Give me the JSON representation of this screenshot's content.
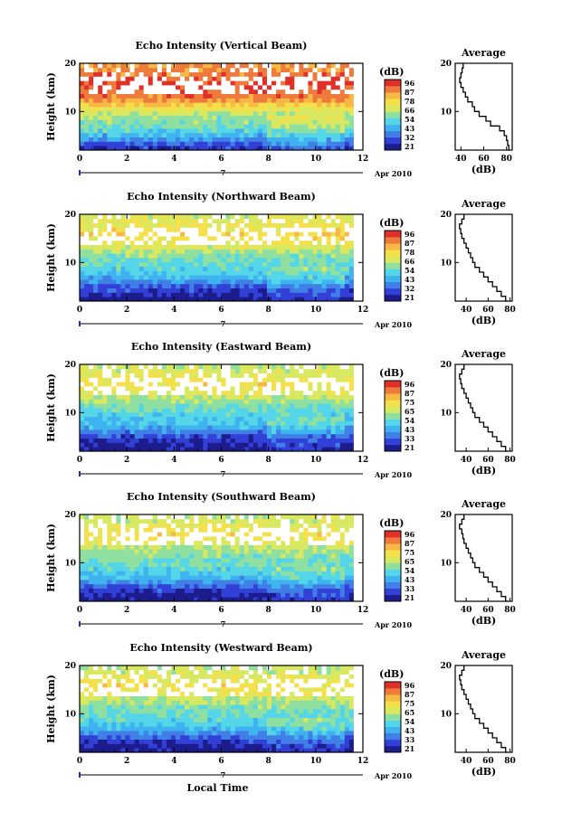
{
  "figure": {
    "x_axis_label": "Local Time",
    "date_label": "Apr 2010",
    "day_marker": "7"
  },
  "colorscale": {
    "colors": [
      "#1c1c8c",
      "#3240d8",
      "#3f7fe6",
      "#3fb3ef",
      "#55d6e8",
      "#8fe0a0",
      "#d8e860",
      "#f4e04a",
      "#f7b845",
      "#ee7a3c",
      "#e0302a"
    ],
    "missing_color": "#ffffff"
  },
  "chart_data": [
    {
      "type": "heatmap",
      "title": "Echo Intensity (Vertical Beam)",
      "xlabel": "",
      "ylabel": "Height (km)",
      "xlim": [
        0,
        12
      ],
      "ylim": [
        2,
        20
      ],
      "x_ticks": [
        "0",
        "2",
        "4",
        "6",
        "8",
        "10",
        "12"
      ],
      "y_ticks": [
        "10",
        "20"
      ],
      "colorbar": {
        "unit": "(dB)",
        "ticks": [
          "96",
          "87",
          "78",
          "66",
          "54",
          "43",
          "32",
          "21"
        ],
        "range": [
          21,
          96
        ]
      },
      "profile_levels_db": [
        30,
        34,
        40,
        46,
        52,
        56,
        58,
        60,
        64,
        70,
        76,
        82,
        86,
        88,
        90,
        90,
        88,
        86,
        84,
        82
      ],
      "profile": {
        "title": "Average",
        "xlabel": "(dB)",
        "x_ticks": [
          "40",
          "60",
          "80"
        ],
        "xlim": [
          35,
          85
        ],
        "y_ticks": [
          "10",
          "20"
        ],
        "ylim": [
          2,
          20
        ],
        "points": [
          [
            83,
            2
          ],
          [
            82,
            3
          ],
          [
            81,
            4
          ],
          [
            80,
            5
          ],
          [
            78,
            6
          ],
          [
            74,
            7
          ],
          [
            66,
            8
          ],
          [
            62,
            9
          ],
          [
            56,
            10
          ],
          [
            52,
            11
          ],
          [
            50,
            12
          ],
          [
            46,
            13
          ],
          [
            44,
            14
          ],
          [
            42,
            15
          ],
          [
            40,
            16
          ],
          [
            39,
            17
          ],
          [
            40,
            18
          ],
          [
            41,
            19
          ],
          [
            42,
            20
          ]
        ]
      }
    },
    {
      "type": "heatmap",
      "title": "Echo Intensity (Northward Beam)",
      "xlabel": "",
      "ylabel": "Height (km)",
      "xlim": [
        0,
        12
      ],
      "ylim": [
        2,
        20
      ],
      "x_ticks": [
        "0",
        "2",
        "4",
        "6",
        "8",
        "10",
        "12"
      ],
      "y_ticks": [
        "10",
        "20"
      ],
      "colorbar": {
        "unit": "(dB)",
        "ticks": [
          "96",
          "87",
          "78",
          "66",
          "54",
          "43",
          "32",
          "21"
        ],
        "range": [
          21,
          96
        ]
      },
      "profile_levels_db": [
        24,
        26,
        30,
        34,
        40,
        46,
        50,
        52,
        54,
        56,
        58,
        62,
        66,
        70,
        72,
        74,
        72,
        70,
        68,
        66
      ],
      "profile": {
        "title": "Average",
        "xlabel": "(dB)",
        "x_ticks": [
          "40",
          "60",
          "80"
        ],
        "xlim": [
          30,
          82
        ],
        "y_ticks": [
          "10",
          "20"
        ],
        "ylim": [
          2,
          20
        ],
        "points": [
          [
            78,
            2
          ],
          [
            76,
            3
          ],
          [
            72,
            4
          ],
          [
            68,
            5
          ],
          [
            64,
            6
          ],
          [
            60,
            7
          ],
          [
            56,
            8
          ],
          [
            52,
            9
          ],
          [
            48,
            10
          ],
          [
            46,
            11
          ],
          [
            44,
            12
          ],
          [
            42,
            13
          ],
          [
            40,
            14
          ],
          [
            38,
            15
          ],
          [
            36,
            16
          ],
          [
            35,
            17
          ],
          [
            34,
            18
          ],
          [
            36,
            19
          ],
          [
            38,
            20
          ]
        ]
      }
    },
    {
      "type": "heatmap",
      "title": "Echo Intensity (Eastward Beam)",
      "xlabel": "",
      "ylabel": "Height (km)",
      "xlim": [
        0,
        12
      ],
      "ylim": [
        2,
        20
      ],
      "x_ticks": [
        "0",
        "2",
        "4",
        "6",
        "8",
        "10",
        "12"
      ],
      "y_ticks": [
        "10",
        "20"
      ],
      "colorbar": {
        "unit": "(dB)",
        "ticks": [
          "96",
          "87",
          "75",
          "65",
          "54",
          "43",
          "33",
          "21"
        ],
        "range": [
          21,
          96
        ]
      },
      "profile_levels_db": [
        24,
        26,
        28,
        32,
        38,
        44,
        48,
        50,
        52,
        54,
        56,
        60,
        64,
        68,
        70,
        72,
        70,
        68,
        66,
        64
      ],
      "profile": {
        "title": "Average",
        "xlabel": "(dB)",
        "x_ticks": [
          "40",
          "60",
          "80"
        ],
        "xlim": [
          30,
          82
        ],
        "y_ticks": [
          "10",
          "20"
        ],
        "ylim": [
          2,
          20
        ],
        "points": [
          [
            78,
            2
          ],
          [
            76,
            3
          ],
          [
            72,
            4
          ],
          [
            68,
            5
          ],
          [
            64,
            6
          ],
          [
            60,
            7
          ],
          [
            56,
            8
          ],
          [
            52,
            9
          ],
          [
            48,
            10
          ],
          [
            46,
            11
          ],
          [
            44,
            12
          ],
          [
            42,
            13
          ],
          [
            40,
            14
          ],
          [
            38,
            15
          ],
          [
            36,
            16
          ],
          [
            35,
            17
          ],
          [
            34,
            18
          ],
          [
            36,
            19
          ],
          [
            38,
            20
          ]
        ]
      }
    },
    {
      "type": "heatmap",
      "title": "Echo Intensity (Southward Beam)",
      "xlabel": "",
      "ylabel": "Height (km)",
      "xlim": [
        0,
        12
      ],
      "ylim": [
        2,
        20
      ],
      "x_ticks": [
        "0",
        "2",
        "4",
        "6",
        "8",
        "10",
        "12"
      ],
      "y_ticks": [
        "10",
        "20"
      ],
      "colorbar": {
        "unit": "(dB)",
        "ticks": [
          "96",
          "87",
          "75",
          "65",
          "54",
          "43",
          "33",
          "21"
        ],
        "range": [
          21,
          96
        ]
      },
      "profile_levels_db": [
        24,
        26,
        30,
        34,
        40,
        46,
        50,
        52,
        54,
        56,
        58,
        60,
        64,
        68,
        70,
        72,
        70,
        68,
        66,
        64
      ],
      "profile": {
        "title": "Average",
        "xlabel": "(dB)",
        "x_ticks": [
          "40",
          "60",
          "80"
        ],
        "xlim": [
          30,
          82
        ],
        "y_ticks": [
          "10",
          "20"
        ],
        "ylim": [
          2,
          20
        ],
        "points": [
          [
            78,
            2
          ],
          [
            76,
            3
          ],
          [
            72,
            4
          ],
          [
            68,
            5
          ],
          [
            64,
            6
          ],
          [
            60,
            7
          ],
          [
            56,
            8
          ],
          [
            52,
            9
          ],
          [
            48,
            10
          ],
          [
            46,
            11
          ],
          [
            44,
            12
          ],
          [
            42,
            13
          ],
          [
            40,
            14
          ],
          [
            38,
            15
          ],
          [
            37,
            16
          ],
          [
            36,
            17
          ],
          [
            34,
            18
          ],
          [
            36,
            19
          ],
          [
            38,
            20
          ]
        ]
      }
    },
    {
      "type": "heatmap",
      "title": "Echo Intensity (Westward Beam)",
      "xlabel": "Local Time",
      "ylabel": "Height (km)",
      "xlim": [
        0,
        12
      ],
      "ylim": [
        2,
        20
      ],
      "x_ticks": [
        "0",
        "2",
        "4",
        "6",
        "8",
        "10",
        "12"
      ],
      "y_ticks": [
        "10",
        "20"
      ],
      "colorbar": {
        "unit": "(dB)",
        "ticks": [
          "96",
          "87",
          "75",
          "65",
          "54",
          "43",
          "33",
          "21"
        ],
        "range": [
          21,
          96
        ]
      },
      "profile_levels_db": [
        24,
        26,
        30,
        34,
        40,
        46,
        50,
        52,
        54,
        56,
        58,
        60,
        64,
        68,
        70,
        72,
        70,
        68,
        66,
        64
      ],
      "profile": {
        "title": "Average",
        "xlabel": "(dB)",
        "x_ticks": [
          "40",
          "60",
          "80"
        ],
        "xlim": [
          30,
          82
        ],
        "y_ticks": [
          "10",
          "20"
        ],
        "ylim": [
          2,
          20
        ],
        "points": [
          [
            78,
            2
          ],
          [
            76,
            3
          ],
          [
            72,
            4
          ],
          [
            68,
            5
          ],
          [
            64,
            6
          ],
          [
            60,
            7
          ],
          [
            56,
            8
          ],
          [
            52,
            9
          ],
          [
            48,
            10
          ],
          [
            46,
            11
          ],
          [
            44,
            12
          ],
          [
            42,
            13
          ],
          [
            40,
            14
          ],
          [
            38,
            15
          ],
          [
            36,
            16
          ],
          [
            35,
            17
          ],
          [
            34,
            18
          ],
          [
            36,
            19
          ],
          [
            38,
            20
          ]
        ]
      }
    }
  ]
}
